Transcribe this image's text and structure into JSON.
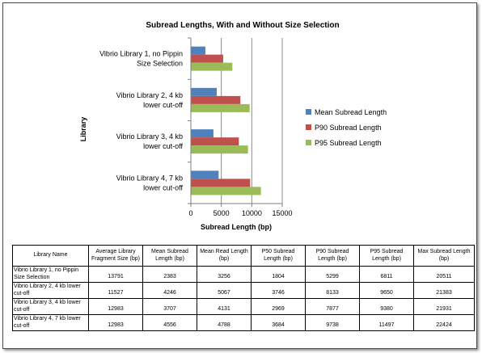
{
  "chart_data": {
    "type": "bar",
    "orientation": "horizontal",
    "title": "Subread Lengths, With and Without Size Selection",
    "xlabel": "Subread Length (bp)",
    "ylabel": "Library",
    "xlim": [
      0,
      15000
    ],
    "xticks": [
      "0",
      "5000",
      "10000",
      "15000"
    ],
    "grid": "vertical",
    "legend_position": "right",
    "categories": [
      [
        "Vibrio Library 1, no Pippin",
        "Size Selection"
      ],
      [
        "Vibrio Library 2, 4 kb",
        "lower cut-off"
      ],
      [
        "Vibrio Library 3, 4 kb",
        "lower cut-off"
      ],
      [
        "Vibrio Library 4, 7 kb",
        "lower cut-off"
      ]
    ],
    "series": [
      {
        "name": "Mean Subread Length",
        "color": "#4F81BD",
        "values": [
          2383,
          4246,
          3707,
          4556
        ]
      },
      {
        "name": "P90 Subread Length",
        "color": "#C0504D",
        "values": [
          5299,
          8133,
          7877,
          9738
        ]
      },
      {
        "name": "P95 Subread Length",
        "color": "#9BBB59",
        "values": [
          6811,
          9650,
          9380,
          11497
        ]
      }
    ]
  },
  "table": {
    "headers": [
      "Library Name",
      "Average Library Fragment Size (bp)",
      "Mean Subread Length (bp)",
      "Mean Read Length (bp)",
      "P50 Subread Length (bp)",
      "P90 Subread Length (bp)",
      "P95 Subread Length (bp)",
      "Max Subread Length (bp)"
    ],
    "rows": [
      [
        "Vibrio Library 1, no Pippin Size Selection",
        "13791",
        "2383",
        "3256",
        "1804",
        "5299",
        "6811",
        "20511"
      ],
      [
        "Vibrio Library 2, 4 kb lower cut-off",
        "11527",
        "4246",
        "5067",
        "3746",
        "8133",
        "9650",
        "21383"
      ],
      [
        "Vibrio Library 3, 4 kb lower cut-off",
        "12983",
        "3707",
        "4131",
        "2969",
        "7877",
        "9380",
        "21931"
      ],
      [
        "Vibrio Library 4, 7 kb lower cut-off",
        "12983",
        "4556",
        "4788",
        "3684",
        "9738",
        "11497",
        "22424"
      ]
    ]
  }
}
